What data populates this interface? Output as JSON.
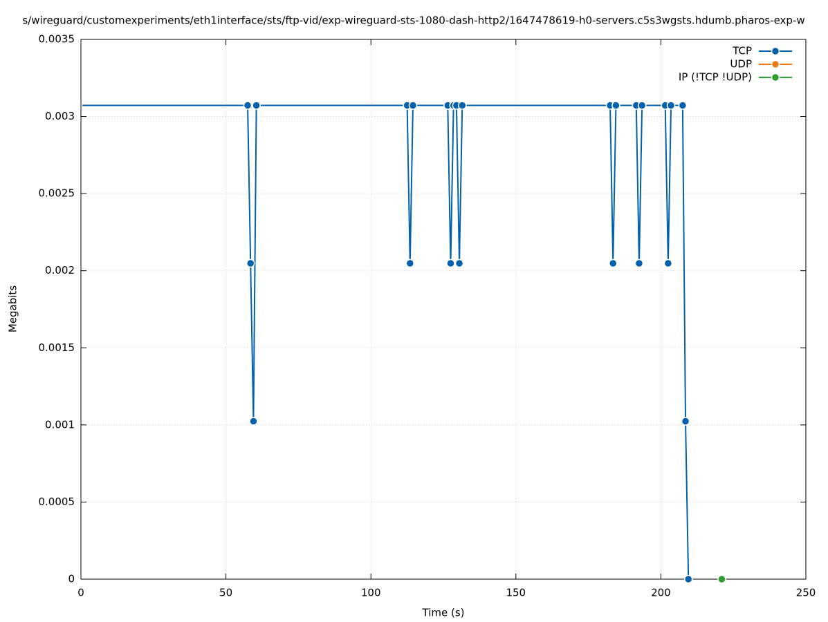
{
  "chart_data": {
    "type": "line",
    "title": "s/wireguard/customexperiments/eth1interface/sts/ftp-vid/exp-wireguard-sts-1080-dash-http2/1647478619-h0-servers.c5s3wgsts.hdumb.pharos-exp-w",
    "x_label": "Time (s)",
    "y_label": "Megabits",
    "xlim": [
      0,
      250
    ],
    "ylim": [
      0,
      0.0035
    ],
    "xticks": [
      0,
      50,
      100,
      150,
      200,
      250
    ],
    "yticks": [
      0,
      0.0005,
      0.001,
      0.0015,
      0.002,
      0.0025,
      0.003,
      0.0035
    ],
    "grid": true,
    "legend": "top-right",
    "series": [
      {
        "name": "TCP",
        "color": "#0060ad",
        "x": [
          0.5,
          1.5,
          2.5,
          3.5,
          4.5,
          5.5,
          6.5,
          7.5,
          8.5,
          9.5,
          10.5,
          11.5,
          12.5,
          13.5,
          14.5,
          15.5,
          16.5,
          17.5,
          18.5,
          19.5,
          20.5,
          21.5,
          22.5,
          23.5,
          24.5,
          25.5,
          26.5,
          27.5,
          28.5,
          29.5,
          30.5,
          31.5,
          32.5,
          33.5,
          34.5,
          35.5,
          36.5,
          37.5,
          38.5,
          39.5,
          40.5,
          41.5,
          42.5,
          43.5,
          44.5,
          45.5,
          46.5,
          47.5,
          48.5,
          49.5,
          50.5,
          51.5,
          52.5,
          53.5,
          54.5,
          55.5,
          56.5,
          57.5,
          58.5,
          59.5,
          60.5,
          61.5,
          62.5,
          63.5,
          64.5,
          65.5,
          66.5,
          67.5,
          68.5,
          69.5,
          70.5,
          71.5,
          72.5,
          73.5,
          74.5,
          75.5,
          76.5,
          77.5,
          78.5,
          79.5,
          80.5,
          81.5,
          82.5,
          83.5,
          84.5,
          85.5,
          86.5,
          87.5,
          88.5,
          89.5,
          90.5,
          91.5,
          92.5,
          93.5,
          94.5,
          95.5,
          96.5,
          97.5,
          98.5,
          99.5,
          100.5,
          101.5,
          102.5,
          103.5,
          104.5,
          105.5,
          106.5,
          107.5,
          108.5,
          109.5,
          110.5,
          111.5,
          112.5,
          113.5,
          114.5,
          115.5,
          116.5,
          117.5,
          118.5,
          119.5,
          120.5,
          121.5,
          122.5,
          123.5,
          124.5,
          125.5,
          126.5,
          127.5,
          128.5,
          129.5,
          130.5,
          131.5,
          132.5,
          133.5,
          134.5,
          135.5,
          136.5,
          137.5,
          138.5,
          139.5,
          140.5,
          141.5,
          142.5,
          143.5,
          144.5,
          145.5,
          146.5,
          147.5,
          148.5,
          149.5,
          150.5,
          151.5,
          152.5,
          153.5,
          154.5,
          155.5,
          156.5,
          157.5,
          158.5,
          159.5,
          160.5,
          161.5,
          162.5,
          163.5,
          164.5,
          165.5,
          166.5,
          167.5,
          168.5,
          169.5,
          170.5,
          171.5,
          172.5,
          173.5,
          174.5,
          175.5,
          176.5,
          177.5,
          178.5,
          179.5,
          180.5,
          181.5,
          182.5,
          183.5,
          184.5,
          185.5,
          186.5,
          187.5,
          188.5,
          189.5,
          190.5,
          191.5,
          192.5,
          193.5,
          194.5,
          195.5,
          196.5,
          197.5,
          198.5,
          199.5,
          200.5,
          201.5,
          202.5,
          203.5,
          204.5,
          205.5,
          206.5,
          207.5,
          208.5,
          209.5
        ],
        "values": [
          0.003072,
          0.003072,
          0.003072,
          0.003072,
          0.003072,
          0.003072,
          0.003072,
          0.003072,
          0.003072,
          0.003072,
          0.003072,
          0.003072,
          0.003072,
          0.003072,
          0.003072,
          0.003072,
          0.003072,
          0.003072,
          0.003072,
          0.003072,
          0.003072,
          0.003072,
          0.003072,
          0.003072,
          0.003072,
          0.003072,
          0.003072,
          0.003072,
          0.003072,
          0.003072,
          0.003072,
          0.003072,
          0.003072,
          0.003072,
          0.003072,
          0.003072,
          0.003072,
          0.003072,
          0.003072,
          0.003072,
          0.003072,
          0.003072,
          0.003072,
          0.003072,
          0.003072,
          0.003072,
          0.003072,
          0.003072,
          0.003072,
          0.003072,
          0.003072,
          0.003072,
          0.003072,
          0.003072,
          0.003072,
          0.003072,
          0.003072,
          0.003072,
          0.002048,
          0.001024,
          0.003072,
          0.003072,
          0.003072,
          0.003072,
          0.003072,
          0.003072,
          0.003072,
          0.003072,
          0.003072,
          0.003072,
          0.003072,
          0.003072,
          0.003072,
          0.003072,
          0.003072,
          0.003072,
          0.003072,
          0.003072,
          0.003072,
          0.003072,
          0.003072,
          0.003072,
          0.003072,
          0.003072,
          0.003072,
          0.003072,
          0.003072,
          0.003072,
          0.003072,
          0.003072,
          0.003072,
          0.003072,
          0.003072,
          0.003072,
          0.003072,
          0.003072,
          0.003072,
          0.003072,
          0.003072,
          0.003072,
          0.003072,
          0.003072,
          0.003072,
          0.003072,
          0.003072,
          0.003072,
          0.003072,
          0.003072,
          0.003072,
          0.003072,
          0.003072,
          0.003072,
          0.003072,
          0.002048,
          0.003072,
          0.003072,
          0.003072,
          0.003072,
          0.003072,
          0.003072,
          0.003072,
          0.003072,
          0.003072,
          0.003072,
          0.003072,
          0.003072,
          0.003072,
          0.002048,
          0.003072,
          0.003072,
          0.002048,
          0.003072,
          0.003072,
          0.003072,
          0.003072,
          0.003072,
          0.003072,
          0.003072,
          0.003072,
          0.003072,
          0.003072,
          0.003072,
          0.003072,
          0.003072,
          0.003072,
          0.003072,
          0.003072,
          0.003072,
          0.003072,
          0.003072,
          0.003072,
          0.003072,
          0.003072,
          0.003072,
          0.003072,
          0.003072,
          0.003072,
          0.003072,
          0.003072,
          0.003072,
          0.003072,
          0.003072,
          0.003072,
          0.003072,
          0.003072,
          0.003072,
          0.003072,
          0.003072,
          0.003072,
          0.003072,
          0.003072,
          0.003072,
          0.003072,
          0.003072,
          0.003072,
          0.003072,
          0.003072,
          0.003072,
          0.003072,
          0.003072,
          0.003072,
          0.003072,
          0.003072,
          0.002048,
          0.003072,
          0.003072,
          0.003072,
          0.003072,
          0.003072,
          0.003072,
          0.003072,
          0.003072,
          0.002048,
          0.003072,
          0.003072,
          0.003072,
          0.003072,
          0.003072,
          0.003072,
          0.003072,
          0.003072,
          0.003072,
          0.002048,
          0.003072,
          0.003072,
          0.003072,
          0.003072,
          0.003072,
          0.001024,
          0
        ]
      },
      {
        "name": "UDP",
        "color": "#f07c13",
        "x": [],
        "values": []
      },
      {
        "name": "IP (!TCP  !UDP)",
        "color": "#2e9b2e",
        "x": [
          221
        ],
        "values": [
          0
        ]
      }
    ]
  }
}
